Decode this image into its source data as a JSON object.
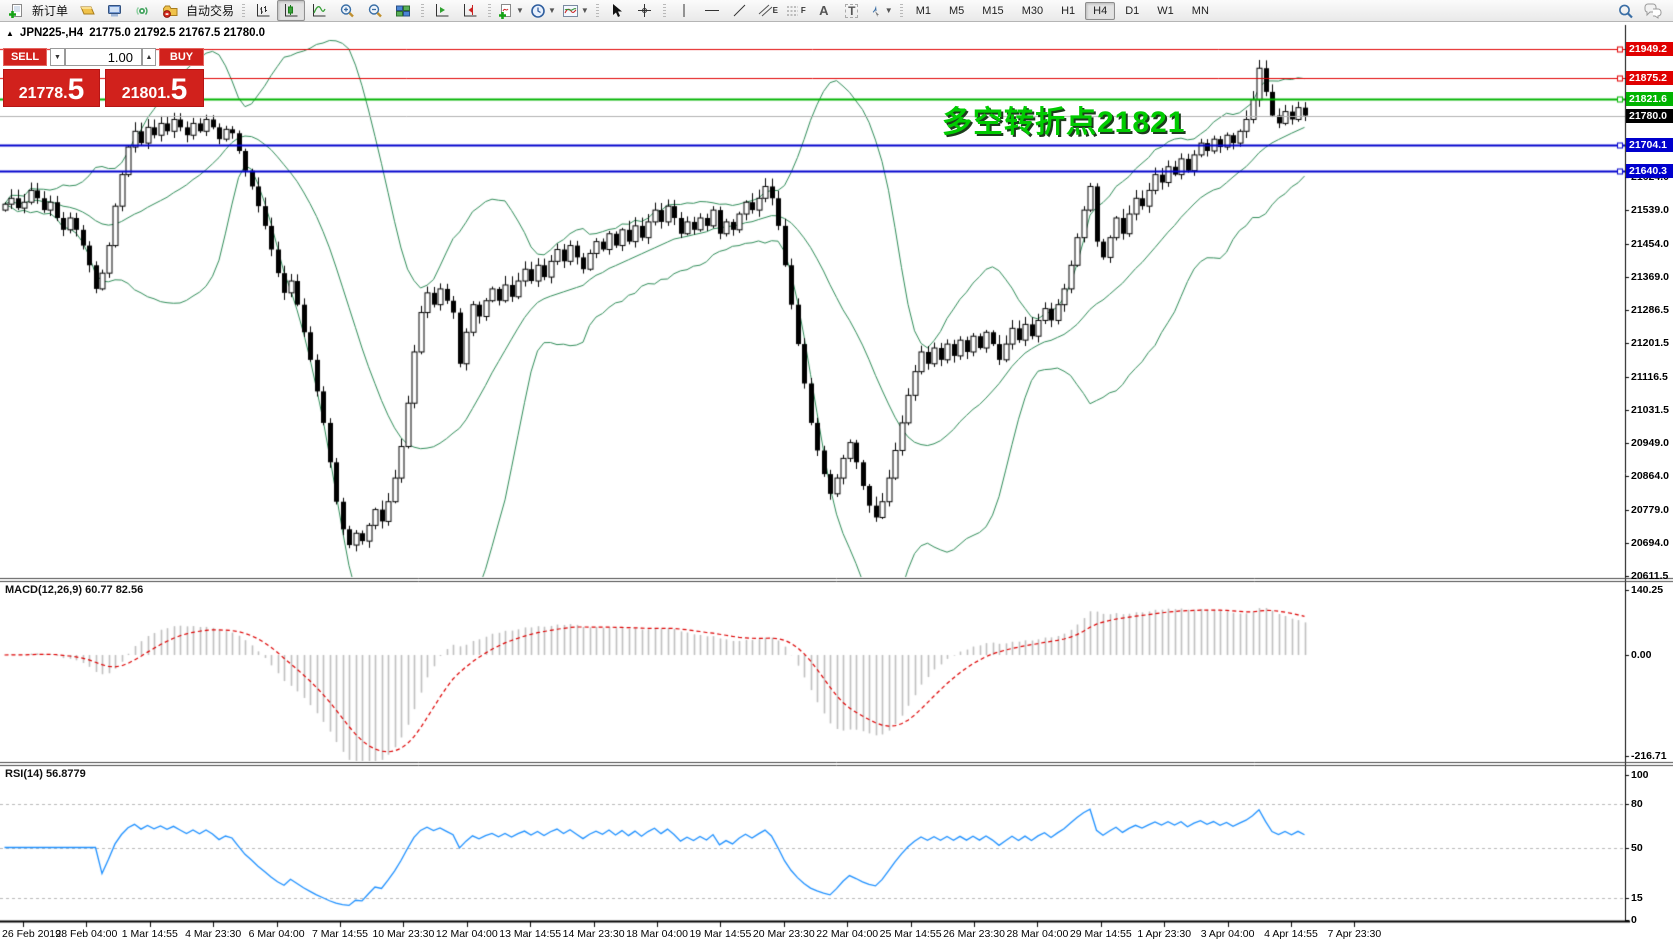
{
  "toolbar": {
    "new_order_label": "新订单",
    "auto_trading_label": "自动交易",
    "timeframes": [
      "M1",
      "M5",
      "M15",
      "M30",
      "H1",
      "H4",
      "D1",
      "W1",
      "MN"
    ],
    "active_timeframe": "H4",
    "icon_glyphs": {
      "text_tool": "A",
      "label_tool": "T",
      "channel_suffix": "E",
      "fibo_suffix": "F"
    }
  },
  "chart": {
    "symbol_period": "JPN225-,H4",
    "quotes": "21775.0 21792.5 21767.5 21780.0"
  },
  "trade_panel": {
    "sell_label": "SELL",
    "buy_label": "BUY",
    "volume": "1.00",
    "sell_price_main": "21778.",
    "sell_price_big": "5",
    "buy_price_main": "21801.",
    "buy_price_big": "5"
  },
  "annotation": {
    "text": "多空转折点21821",
    "color": "#00cc00"
  },
  "price_lines": [
    {
      "price": 21949.2,
      "label": "21949.2",
      "line_color": "#e00000",
      "label_bg": "#e00000",
      "width": 1,
      "handle": true
    },
    {
      "price": 21875.2,
      "label": "21875.2",
      "line_color": "#e00000",
      "label_bg": "#e00000",
      "width": 1,
      "handle": true
    },
    {
      "price": 21821.6,
      "label": "21821.6",
      "line_color": "#00b400",
      "label_bg": "#00b400",
      "width": 2,
      "handle": true
    },
    {
      "price": 21780.0,
      "label": "21780.0",
      "line_color": "#b0b0b0",
      "label_bg": "#000000",
      "width": 1,
      "handle": false
    },
    {
      "price": 21704.1,
      "label": "21704.1",
      "line_color": "#0000cd",
      "label_bg": "#0000cd",
      "width": 2,
      "handle": true
    },
    {
      "price": 21640.3,
      "label": "21640.3",
      "line_color": "#0000cd",
      "label_bg": "#0000cd",
      "width": 2,
      "handle": true
    }
  ],
  "price_axis": {
    "main_ticks": [
      "21624.0",
      "21539.0",
      "21454.0",
      "21369.0",
      "21286.5",
      "21201.5",
      "21116.5",
      "21031.5",
      "20949.0",
      "20864.0",
      "20779.0",
      "20694.0",
      "20611.5"
    ]
  },
  "macd": {
    "name": "MACD(12,26,9)",
    "value_main": "60.77",
    "value_signal": "82.56",
    "ticks": [
      "140.25",
      "0.00",
      "-216.71"
    ]
  },
  "rsi": {
    "name": "RSI(14)",
    "value": "56.8779",
    "ticks": [
      "100",
      "80",
      "50",
      "15",
      "0"
    ],
    "levels": [
      80,
      50,
      15
    ]
  },
  "time_axis": {
    "labels": [
      "26 Feb 2019",
      "28 Feb 04:00",
      "1 Mar 14:55",
      "4 Mar 23:30",
      "6 Mar 04:00",
      "7 Mar 14:55",
      "10 Mar 23:30",
      "12 Mar 04:00",
      "13 Mar 14:55",
      "14 Mar 23:30",
      "18 Mar 04:00",
      "19 Mar 14:55",
      "20 Mar 23:30",
      "22 Mar 04:00",
      "25 Mar 14:55",
      "26 Mar 23:30",
      "28 Mar 04:00",
      "29 Mar 14:55",
      "1 Apr 23:30",
      "3 Apr 04:00",
      "4 Apr 14:55",
      "7 Apr 23:30"
    ]
  },
  "chart_data": {
    "type": "candlestick",
    "symbol": "JPN225-",
    "timeframe": "H4",
    "price_axis_ticks": [
      21624.0,
      21539.0,
      21454.0,
      21369.0,
      21286.5,
      21201.5,
      21116.5,
      21031.5,
      20949.0,
      20864.0,
      20779.0,
      20694.0,
      20611.5
    ],
    "closes": [
      21555,
      21570,
      21545,
      21560,
      21590,
      21570,
      21540,
      21560,
      21520,
      21490,
      21520,
      21490,
      21450,
      21400,
      21340,
      21380,
      21450,
      21550,
      21630,
      21700,
      21740,
      21710,
      21750,
      21730,
      21760,
      21740,
      21770,
      21750,
      21730,
      21760,
      21740,
      21770,
      21750,
      21720,
      21745,
      21735,
      21690,
      21640,
      21600,
      21550,
      21500,
      21440,
      21380,
      21330,
      21360,
      21300,
      21230,
      21160,
      21080,
      21000,
      20900,
      20800,
      20730,
      20690,
      20720,
      20700,
      20740,
      20780,
      20750,
      20800,
      20860,
      20940,
      21050,
      21180,
      21280,
      21330,
      21300,
      21340,
      21310,
      21280,
      21150,
      21230,
      21300,
      21270,
      21310,
      21340,
      21310,
      21350,
      21320,
      21360,
      21390,
      21360,
      21400,
      21370,
      21410,
      21440,
      21410,
      21450,
      21420,
      21390,
      21430,
      21460,
      21440,
      21480,
      21450,
      21490,
      21460,
      21500,
      21470,
      21510,
      21540,
      21510,
      21550,
      21520,
      21480,
      21510,
      21490,
      21520,
      21500,
      21540,
      21480,
      21510,
      21490,
      21530,
      21560,
      21540,
      21570,
      21600,
      21570,
      21500,
      21400,
      21300,
      21200,
      21100,
      21000,
      20930,
      20870,
      20820,
      20860,
      20910,
      20950,
      20900,
      20840,
      20790,
      20760,
      20800,
      20860,
      20930,
      21000,
      21070,
      21130,
      21180,
      21150,
      21190,
      21160,
      21200,
      21170,
      21210,
      21180,
      21220,
      21190,
      21230,
      21200,
      21160,
      21200,
      21240,
      21210,
      21250,
      21220,
      21260,
      21290,
      21260,
      21300,
      21340,
      21400,
      21470,
      21540,
      21600,
      21460,
      21420,
      21470,
      21520,
      21480,
      21530,
      21570,
      21550,
      21590,
      21630,
      21610,
      21650,
      21630,
      21670,
      21640,
      21680,
      21710,
      21690,
      21720,
      21700,
      21730,
      21710,
      21740,
      21770,
      21820,
      21900,
      21840,
      21780,
      21760,
      21790,
      21770,
      21800,
      21780
    ],
    "indicators": {
      "bollinger_bands": {
        "visible": true,
        "color": "#2e8b57"
      },
      "macd": {
        "params": "12,26,9",
        "current_main": 60.77,
        "current_signal": 82.56,
        "axis": [
          140.25,
          0.0,
          -216.71
        ]
      },
      "rsi": {
        "params": "14",
        "current": 56.8779,
        "axis": [
          100,
          80,
          50,
          15,
          0
        ]
      }
    },
    "objects": {
      "horizontal_lines": [
        21949.2,
        21875.2,
        21821.6,
        21704.1,
        21640.3
      ],
      "current_price": 21780.0,
      "text_annotation": "多空转折点21821"
    }
  }
}
